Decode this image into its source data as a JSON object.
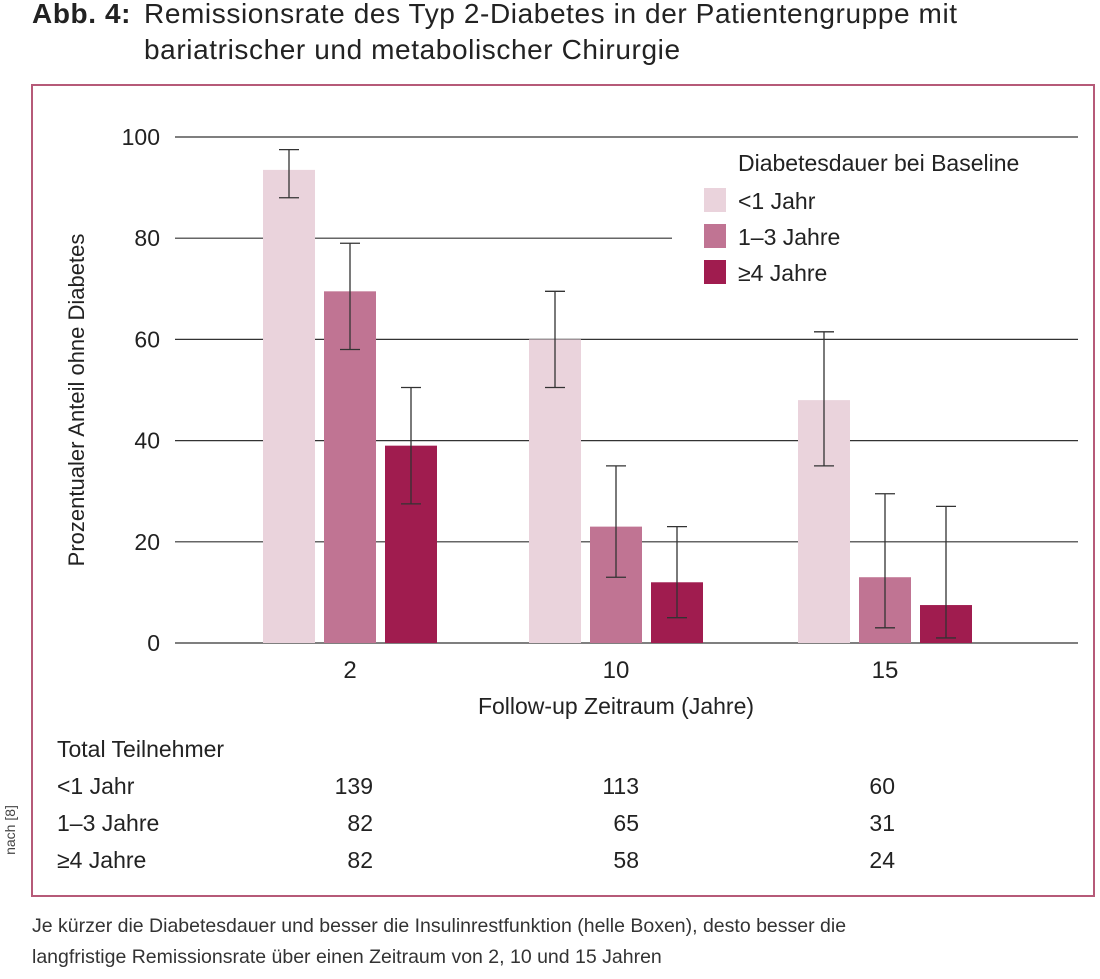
{
  "title": {
    "prefix": "Abb. 4:",
    "line1": "Remissionsrate des Typ 2-Diabetes in der Patientengruppe mit",
    "line2": "bariatrischer und metabolischer Chirurgie"
  },
  "colors": {
    "frame": "#b65a78",
    "light": "#ead3dc",
    "mid": "#c07493",
    "dark": "#a01c4f"
  },
  "chart_data": {
    "type": "bar",
    "categories": [
      "2",
      "10",
      "15"
    ],
    "xlabel": "Follow-up Zeitraum (Jahre)",
    "ylabel": "Prozentualer Anteil ohne Diabetes",
    "ylim": [
      0,
      100
    ],
    "yticks": [
      0,
      20,
      40,
      60,
      80,
      100
    ],
    "grid": true,
    "legend_title": "Diabetesdauer bei Baseline",
    "legend_position": "top-right",
    "series": [
      {
        "name": "<1 Jahr",
        "color": "#ead3dc",
        "values": [
          93.5,
          60,
          48
        ],
        "err_low": [
          88,
          50.5,
          35
        ],
        "err_high": [
          97.5,
          69.5,
          61.5
        ]
      },
      {
        "name": "1–3 Jahre",
        "color": "#c07493",
        "values": [
          69.5,
          23,
          13
        ],
        "err_low": [
          58,
          13,
          3
        ],
        "err_high": [
          79,
          35,
          29.5
        ]
      },
      {
        "name": "≥4 Jahre",
        "color": "#a01c4f",
        "values": [
          39,
          12,
          7.5
        ],
        "err_low": [
          27.5,
          5,
          1
        ],
        "err_high": [
          50.5,
          23,
          27
        ]
      }
    ]
  },
  "table": {
    "header": "Total Teilnehmer",
    "rows": [
      {
        "label": "<1 Jahr",
        "values": [
          "139",
          "113",
          "60"
        ]
      },
      {
        "label": "1–3 Jahre",
        "values": [
          "82",
          "65",
          "31"
        ]
      },
      {
        "label": "≥4 Jahre",
        "values": [
          "82",
          "58",
          "24"
        ]
      }
    ]
  },
  "side_note": "nach [8]",
  "caption": {
    "line1": "Je kürzer die Diabetesdauer und besser die Insulinrestfunktion (helle Boxen), desto besser die",
    "line2": "langfristige Remissionsrate über einen Zeitraum von 2, 10 und 15 Jahren"
  }
}
